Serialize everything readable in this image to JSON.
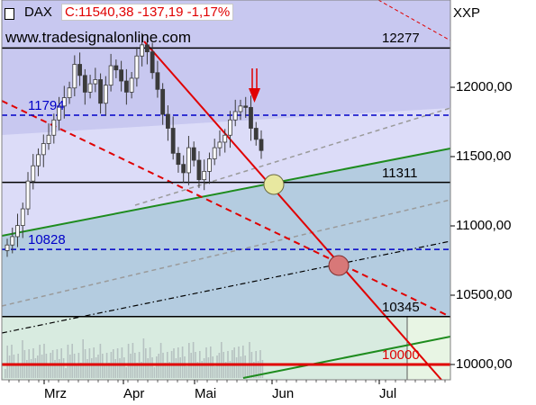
{
  "header": {
    "symbol": "DAX",
    "quote": "C:11540,38 -137,19 -1,17%",
    "watermark": "www.tradesignalonline.com",
    "currency": "XXP"
  },
  "colors": {
    "plot_background": "#dcdcf8",
    "upper_band": "#c8c8f0",
    "lower_band": "#b4cce0",
    "volume_panel": "#d8ebe0",
    "price_line": "#3a3a3a",
    "trend_red": "#e00000",
    "trend_green": "#1e8c1e",
    "level_blue": "#0000c8",
    "level_black": "#000000",
    "quote_red": "#e00000"
  },
  "chart_data": {
    "type": "candlestick",
    "title": "DAX",
    "currency": "XXP",
    "x_ticks": [
      "Mrz",
      "Apr",
      "Mai",
      "Jun",
      "Jul"
    ],
    "y_ticks": [
      "12000,00",
      "11500,00",
      "11000,00",
      "10500,00",
      "10000,00"
    ],
    "ylim": [
      9900,
      12600
    ],
    "last_close": 11540.38,
    "change": -137.19,
    "change_pct": -1.17,
    "levels": [
      {
        "label": "12277",
        "value": 12277,
        "style": "solid",
        "color": "black"
      },
      {
        "label": "11794",
        "value": 11794,
        "style": "dashed",
        "color": "blue"
      },
      {
        "label": "11311",
        "value": 11311,
        "style": "solid",
        "color": "black"
      },
      {
        "label": "10828",
        "value": 10828,
        "style": "dashed",
        "color": "blue"
      },
      {
        "label": "10345",
        "value": 10345,
        "style": "solid",
        "color": "black"
      },
      {
        "label": "10000",
        "value": 10000,
        "style": "solid",
        "color": "red"
      }
    ],
    "price_approx": [
      [
        10860,
        10920,
        11000,
        11120,
        11320,
        11430,
        11510,
        11590,
        11650,
        11760,
        11860,
        11920,
        11990,
        12160,
        12080,
        11960,
        12020,
        12050,
        11880,
        12010,
        12150,
        12120,
        12040,
        11960,
        12060,
        12220,
        12300,
        12250,
        12100,
        11980,
        11800,
        11700,
        11520,
        11440,
        11380,
        11560,
        11470,
        11330,
        11390,
        11480,
        11560,
        11600,
        11650,
        11760,
        11820,
        11860,
        11850,
        11700,
        11620,
        11540
      ]
    ],
    "grid": false,
    "legend": "none"
  }
}
